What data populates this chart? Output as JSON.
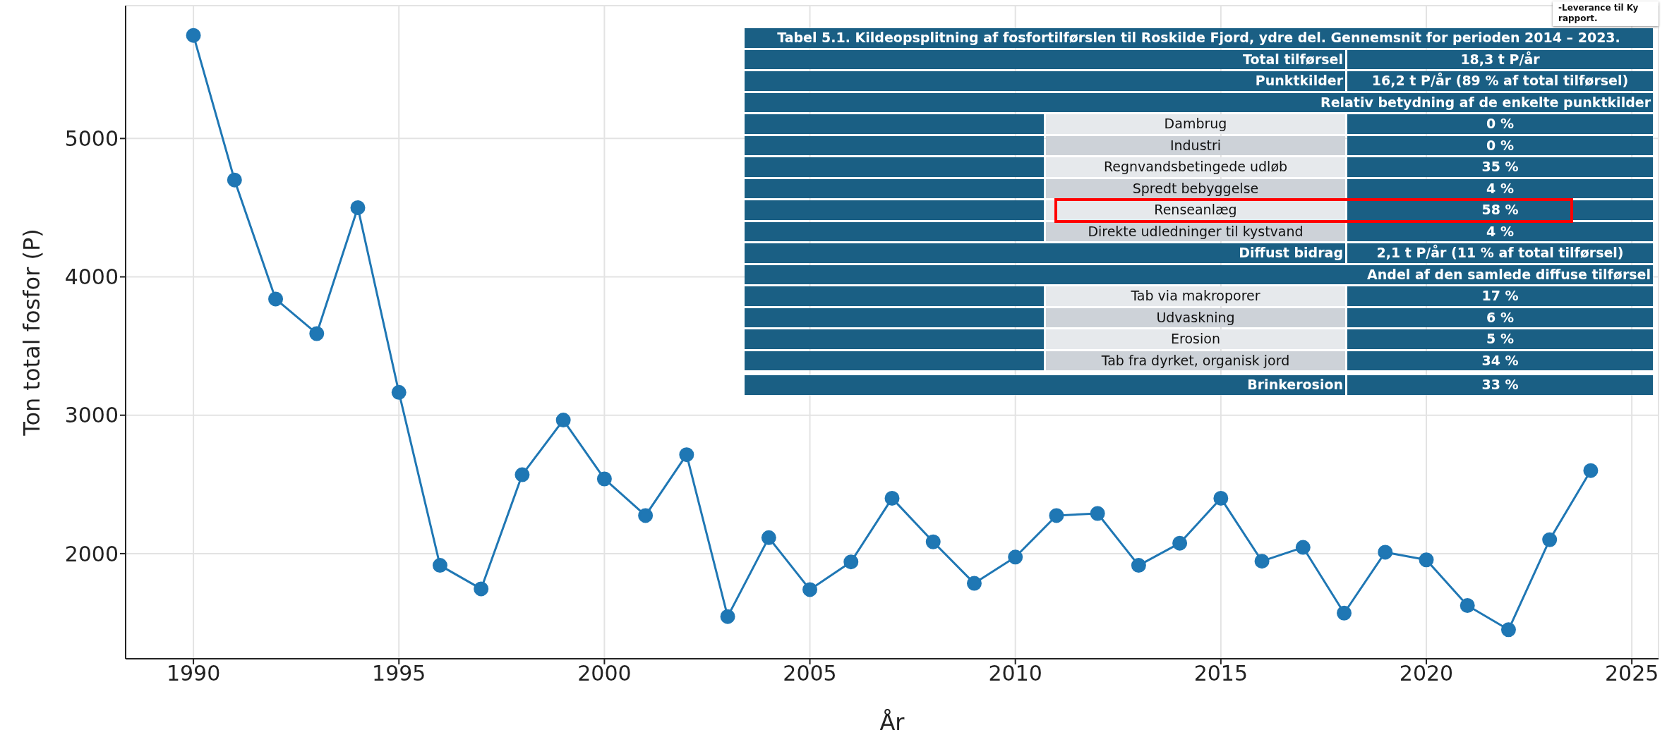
{
  "chart_data": [
    {
      "type": "line",
      "xlabel": "År",
      "ylabel": "Ton total fosfor (P)",
      "x": [
        1990,
        1991,
        1992,
        1993,
        1994,
        1995,
        1996,
        1997,
        1998,
        1999,
        2000,
        2001,
        2002,
        2003,
        2004,
        2005,
        2006,
        2007,
        2008,
        2009,
        2010,
        2011,
        2012,
        2013,
        2014,
        2015,
        2016,
        2017,
        2018,
        2019,
        2020,
        2021,
        2022,
        2023,
        2024
      ],
      "series": [
        {
          "color": "#1f77b4",
          "values": [
            5745,
            4700,
            3840,
            3590,
            4500,
            3165,
            1915,
            1745,
            2570,
            2965,
            2540,
            2275,
            2715,
            1545,
            2115,
            1740,
            1940,
            2400,
            2085,
            1785,
            1975,
            2275,
            2290,
            1915,
            2075,
            2400,
            1945,
            2045,
            1570,
            2010,
            1955,
            1625,
            1450,
            2100,
            2600
          ]
        }
      ],
      "xlim": [
        1988.35,
        2025.65
      ],
      "xticks": [
        1990,
        1995,
        2000,
        2005,
        2010,
        2015,
        2020,
        2025
      ],
      "ylim": [
        1240,
        5960
      ],
      "yticks": [
        2000,
        3000,
        4000,
        5000
      ],
      "grid": true,
      "marker": "circle",
      "line_style": "solid"
    },
    {
      "type": "other",
      "title": "Tabel 5.1. Kildeopsplitning af fosfortilførslen til Roskilde Fjord, ydre del. Gennemsnit for perioden 2014 – 2023.",
      "categories": [
        "Total tilførsel",
        "Punktkilder",
        "Relativ betydning af de enkelte punktkilder",
        "Dambrug",
        "Industri",
        "Regnvandsbetingede udløb",
        "Spredt bebyggelse",
        "Renseanlæg",
        "Direkte udledninger til kystvand",
        "Diffust bidrag",
        "Andel af den samlede diffuse tilførsel",
        "Tab via makroporer",
        "Udvaskning",
        "Erosion",
        "Tab fra dyrket, organisk jord",
        "Brinkerosion"
      ],
      "value_labels": [
        "18,3 t P/år",
        "16,2 t P/år (89 % af total tilførsel)",
        null,
        "0 %",
        "0 %",
        "35 %",
        "4 %",
        "58 %",
        "4 %",
        "2,1 t P/år (11 % af total tilførsel)",
        null,
        "17 %",
        "6 %",
        "5 %",
        "34 %",
        "33 %"
      ],
      "colors": [
        "#1a5f84",
        "#1a5f84",
        "#1a5f84",
        "#e6e9ec",
        "#cdd2d8",
        "#e6e9ec",
        "#cdd2d8",
        "#e6e9ec",
        "#cdd2d8",
        "#1a5f84",
        "#1a5f84",
        "#e6e9ec",
        "#cdd2d8",
        "#e6e9ec",
        "#cdd2d8",
        "#1a5f84"
      ],
      "annotations": [
        "-Leverance til Ky",
        "rapport."
      ]
    }
  ]
}
